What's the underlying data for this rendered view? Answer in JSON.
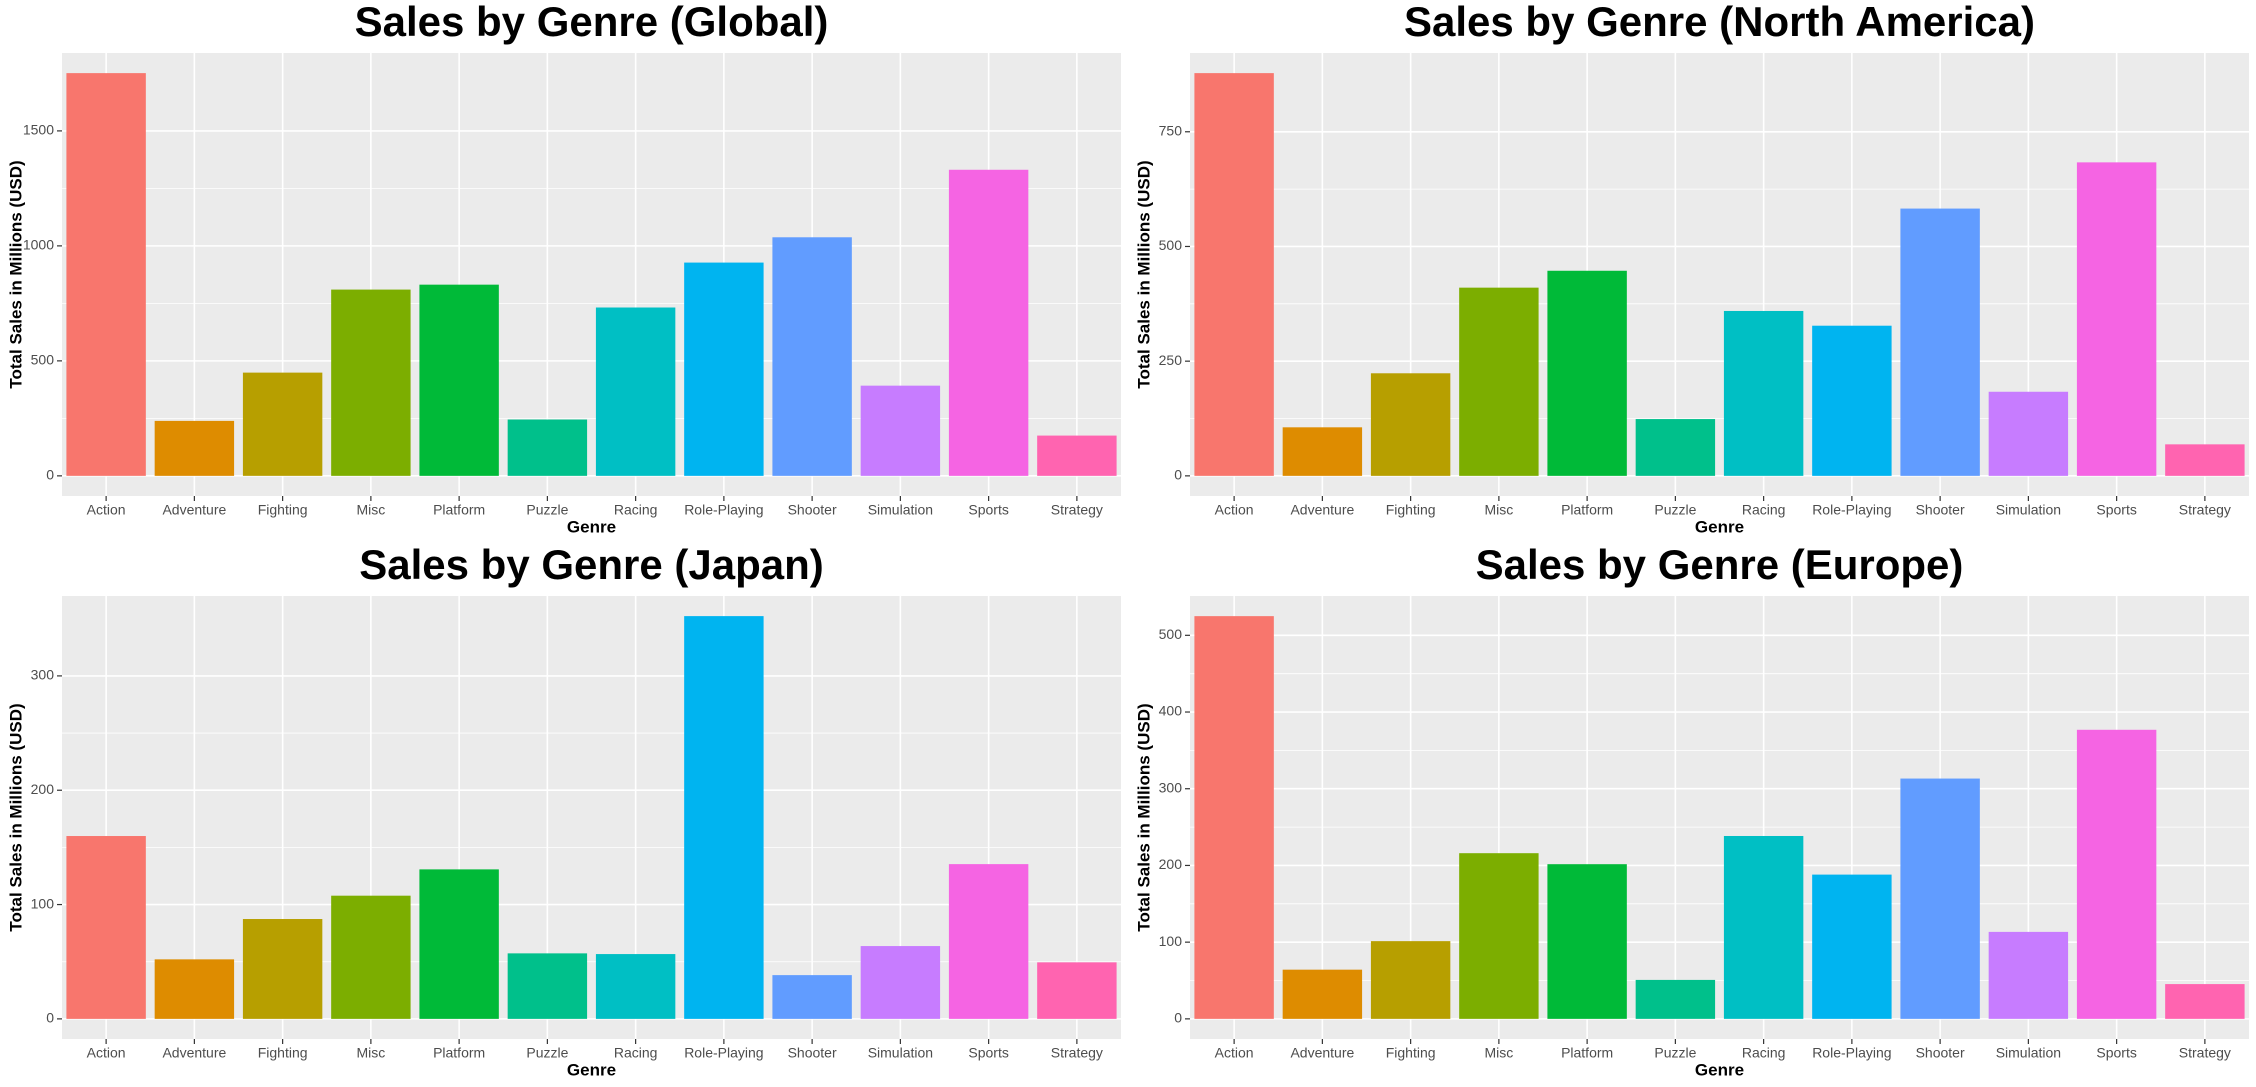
{
  "chart_data": [
    {
      "type": "bar",
      "title": "Sales by Genre (Global)",
      "x_label": "Genre",
      "y_label": "Total Sales in Millions (USD)",
      "categories": [
        "Action",
        "Adventure",
        "Fighting",
        "Misc",
        "Platform",
        "Puzzle",
        "Racing",
        "Role-Playing",
        "Shooter",
        "Simulation",
        "Sports",
        "Strategy"
      ],
      "values": [
        1751.18,
        239.04,
        448.91,
        809.96,
        831.37,
        244.95,
        732.04,
        927.37,
        1037.37,
        392.2,
        1330.93,
        175.12
      ],
      "colors": [
        "#F8766D",
        "#DE8C00",
        "#B79F00",
        "#7CAE00",
        "#00BA38",
        "#00C08B",
        "#00BFC4",
        "#00B4F0",
        "#619CFF",
        "#C77CFF",
        "#F564E3",
        "#FF64B0"
      ],
      "ylim": [
        -87.6,
        1838.7
      ],
      "yticks": [
        0,
        500,
        1000,
        1500
      ],
      "grid": true
    },
    {
      "type": "bar",
      "title": "Sales by Genre (North America)",
      "x_label": "Genre",
      "y_label": "Total Sales in Millions (USD)",
      "categories": [
        "Action",
        "Adventure",
        "Fighting",
        "Misc",
        "Platform",
        "Puzzle",
        "Racing",
        "Role-Playing",
        "Shooter",
        "Simulation",
        "Sports",
        "Strategy"
      ],
      "values": [
        877.83,
        105.8,
        223.59,
        410.24,
        447.05,
        123.78,
        359.42,
        327.28,
        582.6,
        183.31,
        683.35,
        68.7
      ],
      "colors": [
        "#F8766D",
        "#DE8C00",
        "#B79F00",
        "#7CAE00",
        "#00BA38",
        "#00C08B",
        "#00BFC4",
        "#00B4F0",
        "#619CFF",
        "#C77CFF",
        "#F564E3",
        "#FF64B0"
      ],
      "ylim": [
        -43.9,
        921.7
      ],
      "yticks": [
        0,
        250,
        500,
        750
      ],
      "grid": true
    },
    {
      "type": "bar",
      "title": "Sales by Genre (Japan)",
      "x_label": "Genre",
      "y_label": "Total Sales in Millions (USD)",
      "categories": [
        "Action",
        "Adventure",
        "Fighting",
        "Misc",
        "Platform",
        "Puzzle",
        "Racing",
        "Role-Playing",
        "Shooter",
        "Simulation",
        "Sports",
        "Strategy"
      ],
      "values": [
        159.95,
        52.07,
        87.35,
        107.76,
        130.77,
        57.31,
        56.69,
        352.31,
        38.28,
        63.7,
        135.37,
        49.46
      ],
      "colors": [
        "#F8766D",
        "#DE8C00",
        "#B79F00",
        "#7CAE00",
        "#00BA38",
        "#00C08B",
        "#00BFC4",
        "#00B4F0",
        "#619CFF",
        "#C77CFF",
        "#F564E3",
        "#FF64B0"
      ],
      "ylim": [
        -17.6,
        369.9
      ],
      "yticks": [
        0,
        100,
        200,
        300
      ],
      "grid": true
    },
    {
      "type": "bar",
      "title": "Sales by Genre (Europe)",
      "x_label": "Genre",
      "y_label": "Total Sales in Millions (USD)",
      "categories": [
        "Action",
        "Adventure",
        "Fighting",
        "Misc",
        "Platform",
        "Puzzle",
        "Racing",
        "Role-Playing",
        "Shooter",
        "Simulation",
        "Sports",
        "Strategy"
      ],
      "values": [
        525,
        64.13,
        101.32,
        215.98,
        201.63,
        50.78,
        238.39,
        188.06,
        313.27,
        113.38,
        376.85,
        45.34
      ],
      "colors": [
        "#F8766D",
        "#DE8C00",
        "#B79F00",
        "#7CAE00",
        "#00BA38",
        "#00C08B",
        "#00BFC4",
        "#00B4F0",
        "#619CFF",
        "#C77CFF",
        "#F564E3",
        "#FF64B0"
      ],
      "ylim": [
        -26.25,
        551.25
      ],
      "yticks": [
        0,
        100,
        200,
        300,
        400,
        500
      ],
      "grid": true
    }
  ]
}
